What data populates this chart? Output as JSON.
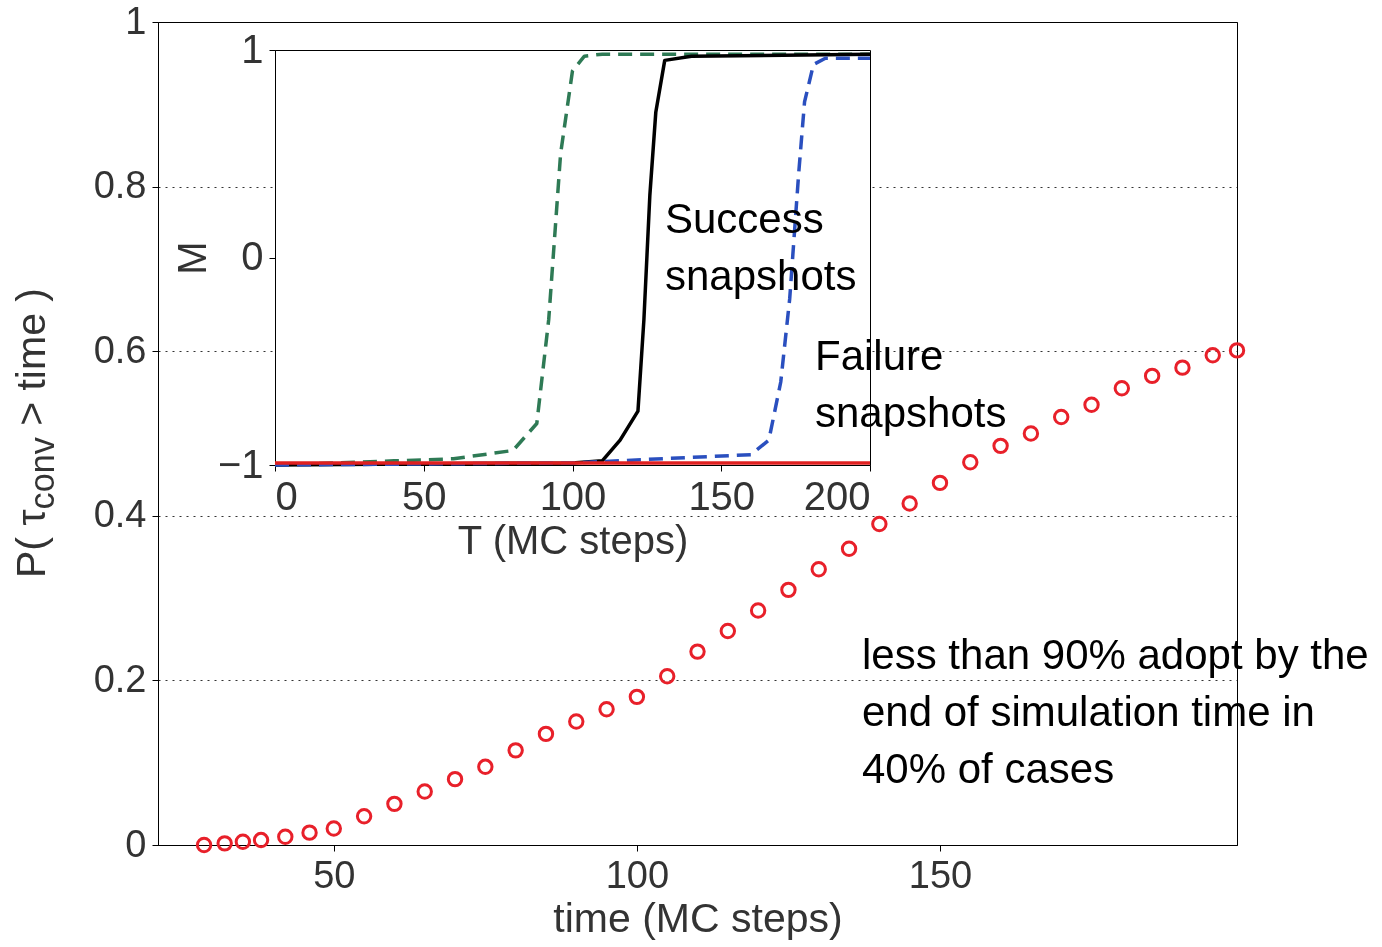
{
  "chart_data": [
    {
      "type": "scatter",
      "xlabel": "time (MC steps)",
      "ylabel": "P( τ$_{conv}$ > time )",
      "color": "#e8202a",
      "marker": "circle",
      "x": [
        28.6,
        32,
        35,
        38,
        42,
        46,
        50,
        55,
        60,
        65,
        70,
        75,
        80,
        85,
        90,
        95,
        100,
        105,
        110,
        115,
        120,
        125,
        130,
        135,
        140,
        145,
        150,
        155,
        160,
        165,
        170,
        175,
        180,
        185,
        190,
        195,
        199
      ],
      "values": [
        0,
        0.002,
        0.004,
        0.006,
        0.01,
        0.015,
        0.02,
        0.035,
        0.05,
        0.065,
        0.08,
        0.095,
        0.115,
        0.135,
        0.15,
        0.165,
        0.18,
        0.205,
        0.235,
        0.26,
        0.285,
        0.31,
        0.335,
        0.36,
        0.39,
        0.415,
        0.44,
        0.465,
        0.485,
        0.5,
        0.52,
        0.535,
        0.555,
        0.57,
        0.58,
        0.595,
        0.601
      ],
      "xlim": [
        21,
        199
      ],
      "ylim": [
        0,
        1
      ],
      "xticks": [
        50,
        100,
        150
      ],
      "yticks": [
        0,
        0.2,
        0.4,
        0.6,
        0.8,
        1
      ],
      "grid": "y",
      "annotations": [
        "less than 90% adopt by the end of simulation time in 40% of cases"
      ]
    },
    {
      "type": "line",
      "xlabel": "T (MC steps)",
      "ylabel": "M",
      "xlim": [
        0,
        200
      ],
      "ylim": [
        -1,
        1
      ],
      "xticks": [
        0,
        50,
        100,
        150,
        200
      ],
      "yticks": [
        {
          "value": -1,
          "label": "−1"
        },
        0,
        1
      ],
      "series": [
        {
          "color": "#2e7a55",
          "line_style": "dashed",
          "x": [
            0,
            40,
            60,
            80,
            88,
            92,
            96,
            100,
            104,
            110,
            200
          ],
          "values": [
            -1,
            -0.98,
            -0.97,
            -0.93,
            -0.8,
            -0.3,
            0.5,
            0.9,
            0.97,
            0.98,
            0.98
          ]
        },
        {
          "color": "#000000",
          "line_style": "solid",
          "x": [
            0,
            100,
            110,
            116,
            122,
            124,
            126,
            128,
            131,
            140,
            200
          ],
          "values": [
            -1,
            -0.99,
            -0.98,
            -0.88,
            -0.74,
            -0.3,
            0.3,
            0.7,
            0.95,
            0.97,
            0.98
          ]
        },
        {
          "color": "#2a4fbf",
          "line_style": "dashed",
          "x": [
            0,
            100,
            160,
            166,
            170,
            173,
            176,
            178,
            181,
            185,
            200
          ],
          "values": [
            -1,
            -0.99,
            -0.95,
            -0.88,
            -0.6,
            -0.2,
            0.4,
            0.75,
            0.93,
            0.96,
            0.96
          ]
        },
        {
          "color": "#e02020",
          "line_style": "solid",
          "x": [
            0,
            200
          ],
          "values": [
            -0.99,
            -0.99
          ]
        }
      ],
      "annotations": [
        "Success snapshots",
        "Failure snapshots"
      ]
    }
  ]
}
